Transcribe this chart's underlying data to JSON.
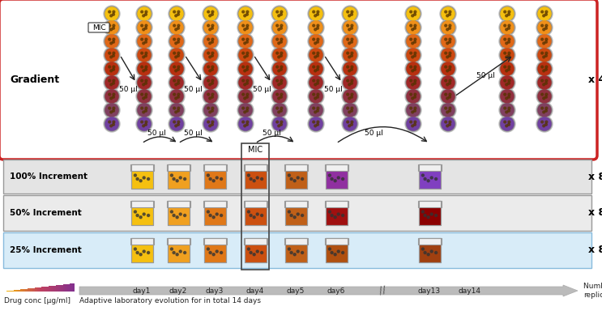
{
  "gradient_colors": [
    "#F5C010",
    "#F0901A",
    "#E06818",
    "#CC4810",
    "#B83010",
    "#A02828",
    "#903040",
    "#804060",
    "#7040A0"
  ],
  "jar_colors_100": [
    "#F5C010",
    "#F0A020",
    "#E07818",
    "#CC5010",
    "#C06018",
    "#9030A0",
    "#8040C0"
  ],
  "jar_colors_50": [
    "#F5C010",
    "#F0A020",
    "#E07818",
    "#CC5010",
    "#C06018",
    "#A01010",
    "#8B0000"
  ],
  "jar_colors_25": [
    "#F5C010",
    "#F0A020",
    "#E07818",
    "#CC5010",
    "#C06018",
    "#B05010",
    "#A04010"
  ],
  "top_border_color": "#cc2222",
  "row100_bg": "#e4e4e4",
  "row50_bg": "#ebebeb",
  "row25_bg": "#d8ecf8",
  "row100_border": "#999999",
  "row50_border": "#999999",
  "row25_border": "#88bbdd",
  "day_labels": [
    "day1",
    "day2",
    "day3",
    "day4",
    "day5",
    "day6",
    "day13",
    "day14"
  ],
  "gradient_label": "Gradient",
  "row_labels": [
    "100% Increment",
    "50% Increment",
    "25% Increment"
  ],
  "xlabel_left": "Drug conc [µg/ml]",
  "xlabel_right": "Number of\nreplicates",
  "bottom_text": "Adaptive laboratory evolution for in total 14 days",
  "x4_label": "x 4",
  "x8_label": "x 8",
  "timeline_color": "#bbbbbb",
  "arrow_color": "#222222",
  "mic_label": "MIC",
  "ul_label": "50 µl"
}
